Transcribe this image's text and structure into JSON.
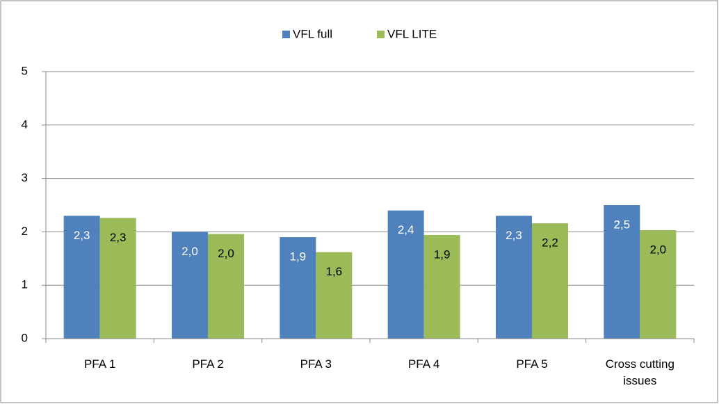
{
  "chart_data": {
    "type": "bar",
    "categories": [
      "PFA 1",
      "PFA 2",
      "PFA 3",
      "PFA 4",
      "PFA 5",
      "Cross cutting issues"
    ],
    "series": [
      {
        "name": "VFL full",
        "color": "#4f81bd",
        "values": [
          2.3,
          2.0,
          1.9,
          2.4,
          2.3,
          2.5
        ],
        "value_labels": [
          "2,3",
          "2,0",
          "1,9",
          "2,4",
          "2,3",
          "2,5"
        ]
      },
      {
        "name": "VFL LITE",
        "color": "#9bbb59",
        "values": [
          2.26,
          1.96,
          1.62,
          1.94,
          2.16,
          2.03
        ],
        "value_labels": [
          "2,3",
          "2,0",
          "1,6",
          "1,9",
          "2,2",
          "2,0"
        ]
      }
    ],
    "ylim": [
      0,
      5
    ],
    "yticks": [
      0,
      1,
      2,
      3,
      4,
      5
    ],
    "grid": true,
    "legend": "top"
  }
}
